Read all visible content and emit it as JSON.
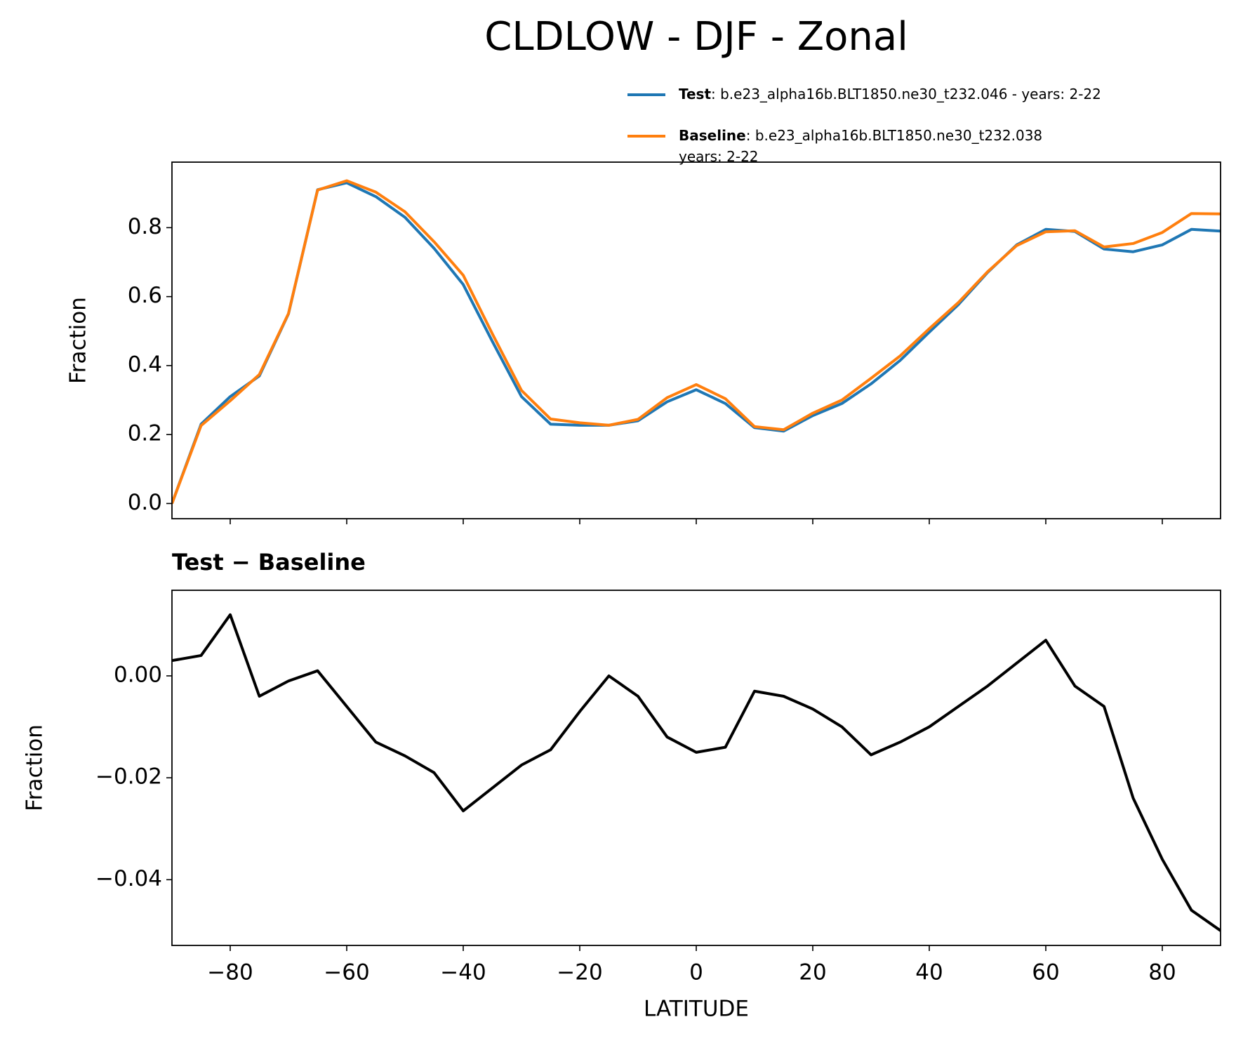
{
  "chart_data": [
    {
      "type": "line",
      "title": "CLDLOW - DJF - Zonal",
      "ylabel": "Fraction",
      "x": [
        -90,
        -85,
        -80,
        -75,
        -70,
        -65,
        -60,
        -55,
        -50,
        -45,
        -40,
        -35,
        -30,
        -25,
        -20,
        -15,
        -10,
        -5,
        0,
        5,
        10,
        15,
        20,
        25,
        30,
        35,
        40,
        45,
        50,
        55,
        60,
        65,
        70,
        75,
        80,
        85,
        90
      ],
      "series": [
        {
          "name": "Test",
          "legend_text": [
            ": b.e23_alpha16b.BLT1850.ne30_t232.046 - years: 2-22"
          ],
          "color": "#1f77b4",
          "values": [
            0.0,
            0.23,
            0.31,
            0.37,
            0.55,
            0.91,
            0.93,
            0.89,
            0.83,
            0.74,
            0.635,
            0.47,
            0.31,
            0.23,
            0.227,
            0.227,
            0.24,
            0.295,
            0.33,
            0.29,
            0.22,
            0.21,
            0.255,
            0.29,
            0.347,
            0.415,
            0.497,
            0.577,
            0.67,
            0.75,
            0.795,
            0.789,
            0.738,
            0.73,
            0.75,
            0.795,
            0.79
          ]
        },
        {
          "name": "Baseline",
          "legend_text": [
            ": b.e23_alpha16b.BLT1850.ne30_t232.038",
            "years: 2-22"
          ],
          "color": "#ff7f0e",
          "values": [
            0.0,
            0.226,
            0.298,
            0.374,
            0.551,
            0.909,
            0.936,
            0.903,
            0.846,
            0.759,
            0.662,
            0.492,
            0.328,
            0.245,
            0.234,
            0.227,
            0.244,
            0.307,
            0.345,
            0.304,
            0.223,
            0.214,
            0.262,
            0.3,
            0.363,
            0.428,
            0.507,
            0.583,
            0.672,
            0.748,
            0.788,
            0.791,
            0.744,
            0.754,
            0.786,
            0.841,
            0.84
          ]
        }
      ],
      "xlim": [
        -90,
        90
      ],
      "xticks": [
        -80,
        -60,
        -40,
        -20,
        0,
        20,
        40,
        60,
        80
      ],
      "ylim": [
        -0.044,
        0.99
      ],
      "yticks": [
        {
          "value": 0,
          "label": "0.0"
        },
        0.2,
        0.4,
        0.6,
        0.8
      ]
    },
    {
      "type": "line",
      "title": "Test − Baseline",
      "ylabel": "Fraction",
      "xlabel": "LATITUDE",
      "x": [
        -90,
        -85,
        -80,
        -75,
        -70,
        -65,
        -60,
        -55,
        -50,
        -45,
        -40,
        -35,
        -30,
        -25,
        -20,
        -15,
        -10,
        -5,
        0,
        5,
        10,
        15,
        20,
        25,
        30,
        35,
        40,
        45,
        50,
        55,
        60,
        65,
        70,
        75,
        80,
        85,
        90
      ],
      "series": [
        {
          "color": "#000000",
          "values": [
            0.003,
            0.004,
            0.012,
            -0.004,
            -0.001,
            0.001,
            -0.006,
            -0.013,
            -0.0157,
            -0.019,
            -0.0265,
            -0.022,
            -0.0175,
            -0.0145,
            -0.007,
            0.0,
            -0.004,
            -0.012,
            -0.015,
            -0.014,
            -0.003,
            -0.004,
            -0.0065,
            -0.01,
            -0.0155,
            -0.013,
            -0.01,
            -0.006,
            -0.002,
            0.0025,
            0.007,
            -0.002,
            -0.006,
            -0.024,
            -0.036,
            -0.046,
            -0.05
          ]
        }
      ],
      "xlim": [
        -90,
        90
      ],
      "xticks": [
        {
          "value": -80,
          "label": "−80"
        },
        {
          "value": -60,
          "label": "−60"
        },
        {
          "value": -40,
          "label": "−40"
        },
        {
          "value": -20,
          "label": "−20"
        },
        0,
        20,
        40,
        60,
        80
      ],
      "ylim": [
        -0.0529,
        0.0168
      ],
      "yticks": [
        {
          "value": -0.04,
          "label": "−0.04"
        },
        {
          "value": -0.02,
          "label": "−0.02"
        },
        {
          "value": 0,
          "label": "0.00"
        }
      ]
    }
  ]
}
